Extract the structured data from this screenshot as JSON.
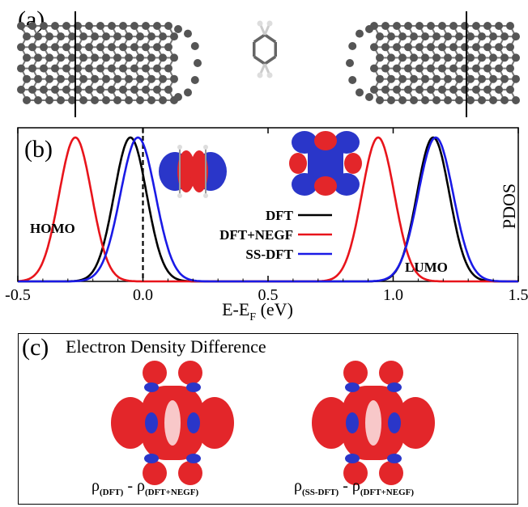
{
  "panel_a": {
    "label": "(a)"
  },
  "panel_b": {
    "label": "(b)",
    "xlabel_main": "E-E",
    "xlabel_sub": "F",
    "xlabel_unit": " (eV)",
    "ylabel": "PDOS",
    "homo_label": "HOMO",
    "lumo_label": "LUMO"
  },
  "panel_c": {
    "label": "(c)",
    "title": "Electron Density Difference",
    "left_formula": {
      "rho": "ρ",
      "sub1": "(DFT)",
      "minus": " - ",
      "sub2": "(DFT+NEGF)"
    },
    "right_formula": {
      "rho": "ρ",
      "sub1": "(SS-DFT)",
      "minus": " - ",
      "sub2": "(DFT+NEGF)"
    }
  },
  "colors": {
    "dft": "#000000",
    "dft_negf": "#e8141b",
    "ss_dft": "#1a1ae6",
    "atom": "#555555",
    "iso_red": "#e3262a",
    "iso_blue": "#2a36c9"
  },
  "chart_data": {
    "type": "line",
    "xlabel": "E-EF (eV)",
    "ylabel": "PDOS",
    "xlim": [
      -0.5,
      1.5
    ],
    "xticks": [
      -0.5,
      0.0,
      0.5,
      1.0,
      1.5
    ],
    "xtick_labels": [
      "-0.5",
      "0.0",
      "0.5",
      "1.0",
      "1.5"
    ],
    "fermi_line": 0.0,
    "legend_position": "center",
    "series": [
      {
        "name": "DFT",
        "color": "#000000",
        "peaks": [
          -0.05,
          1.16
        ],
        "width": 0.065
      },
      {
        "name": "DFT+NEGF",
        "color": "#e8141b",
        "peaks": [
          -0.27,
          0.94
        ],
        "width": 0.065
      },
      {
        "name": "SS-DFT",
        "color": "#1a1ae6",
        "peaks": [
          -0.02,
          1.17
        ],
        "width": 0.07
      }
    ]
  }
}
